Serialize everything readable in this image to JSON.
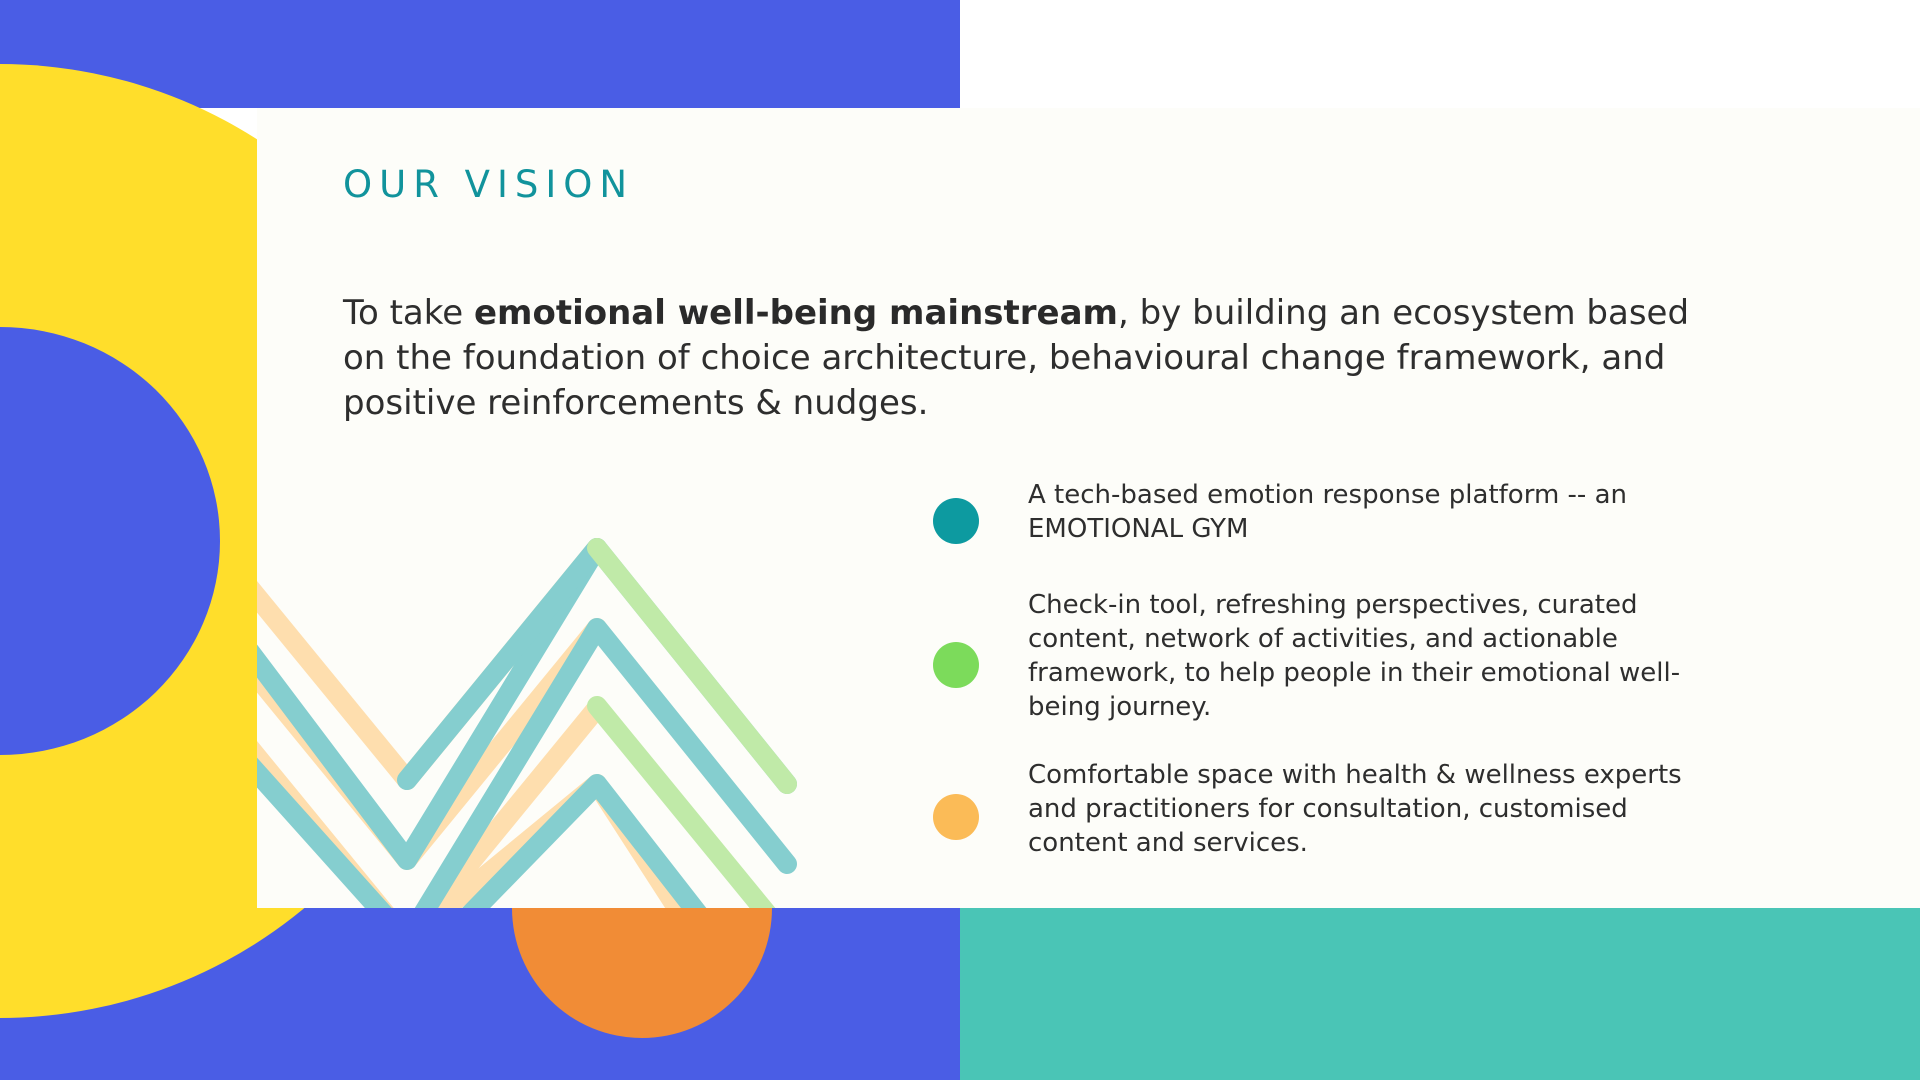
{
  "slide": {
    "title": "OUR VISION",
    "vision": {
      "before": "To take ",
      "emphasis": "emotional well-being mainstream",
      "after": ", by building an ecosystem based on the foundation of choice architecture, behavioural change framework, and positive reinforcements & nudges."
    },
    "points": [
      {
        "text": "A tech-based emotion response platform -- an EMOTIONAL GYM",
        "dot_color": "#0d9aa0"
      },
      {
        "text": "Check-in tool, refreshing perspectives, curated content, network of activities, and actionable framework, to help people in their emotional well-being journey.",
        "dot_color": "#7cdb5b"
      },
      {
        "text": "Comfortable space with health & wellness experts and practitioners for consultation, customised content and services.",
        "dot_color": "#fbbb57"
      }
    ]
  },
  "colors": {
    "background_blue": "#4a5de5",
    "yellow": "#ffde2b",
    "teal_block": "#4ac5b6",
    "orange_circle": "#f18c36",
    "title_teal": "#11939c",
    "card": "#fdfdf9",
    "zigzag_teal": "#7fcccd",
    "zigzag_green": "#bdeaa4",
    "zigzag_peach": "#ffddaa"
  }
}
